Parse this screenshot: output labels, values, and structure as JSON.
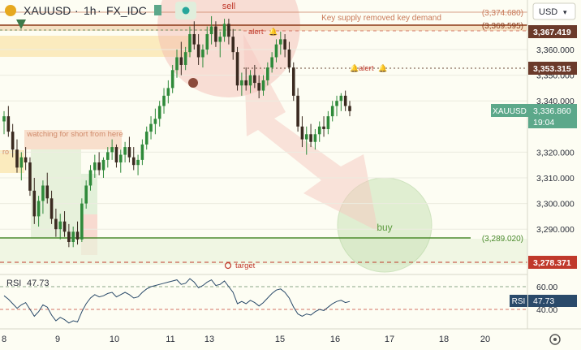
{
  "header": {
    "symbol": "XAUUSD",
    "interval": "1h",
    "exchange": "FX_IDC",
    "separator": "·",
    "currency": "USD"
  },
  "chart_data": {
    "type": "candlestick",
    "price_axis": {
      "ticks": [
        3360,
        3350,
        3340,
        3320,
        3310,
        3300,
        3290
      ],
      "tick_labels": [
        "3,360.000",
        "3,350.000",
        "3,340.000",
        "3,320.000",
        "3,310.000",
        "3,300.000",
        "3,290.000"
      ],
      "range": [
        3270,
        3380
      ]
    },
    "time_axis": {
      "labels": [
        "8",
        "9",
        "10",
        "11",
        "13",
        "15",
        "16",
        "17",
        "18",
        "20"
      ]
    },
    "levels": [
      {
        "price": 3374.68,
        "label": "(3,374.680)",
        "color": "#c97a5a"
      },
      {
        "price": 3369.595,
        "label": "(3,369.595)",
        "color": "#8b3a1a"
      },
      {
        "price": 3289.02,
        "label": "(3,289.020)",
        "color": "#4a8a2c"
      },
      {
        "price": 3278.371,
        "label": "3,278.371",
        "color": "#c0392b"
      },
      {
        "price": 3353.315,
        "label": "3,353.315",
        "color": "#6b4a3a"
      }
    ],
    "price_badges": [
      {
        "price": 3367.419,
        "label": "3,367.419",
        "color": "#6b3a2a"
      },
      {
        "price": 3353.315,
        "label": "3,353.315",
        "color": "#6b3a2a"
      },
      {
        "price": 3336.86,
        "label": "3,336.860",
        "color": "#5ca88a"
      },
      {
        "price": 3278.371,
        "label": "3,278.371",
        "color": "#c0392b"
      }
    ],
    "last_price": {
      "symbol": "XAUUSD",
      "price": "3,336.860",
      "countdown": "19:04"
    },
    "annotations": {
      "supply_note": "Key supply removed key demand",
      "watch_note": "watching for short from here",
      "sell": "sell",
      "buy": "buy",
      "alert": "alert",
      "target": "target",
      "fragment": "ro"
    },
    "candles": [
      [
        3332,
        3336,
        3327,
        3334
      ],
      [
        3334,
        3338,
        3326,
        3328
      ],
      [
        3328,
        3331,
        3318,
        3321
      ],
      [
        3321,
        3325,
        3312,
        3314
      ],
      [
        3314,
        3320,
        3309,
        3318
      ],
      [
        3318,
        3322,
        3313,
        3316
      ],
      [
        3316,
        3318,
        3303,
        3305
      ],
      [
        3305,
        3310,
        3292,
        3295
      ],
      [
        3295,
        3303,
        3291,
        3301
      ],
      [
        3301,
        3309,
        3296,
        3307
      ],
      [
        3307,
        3312,
        3300,
        3302
      ],
      [
        3302,
        3305,
        3292,
        3294
      ],
      [
        3294,
        3298,
        3287,
        3290
      ],
      [
        3290,
        3296,
        3286,
        3293
      ],
      [
        3293,
        3297,
        3287,
        3289
      ],
      [
        3289,
        3292,
        3283,
        3285
      ],
      [
        3285,
        3291,
        3283,
        3289
      ],
      [
        3289,
        3293,
        3284,
        3286
      ],
      [
        3286,
        3302,
        3285,
        3300
      ],
      [
        3300,
        3309,
        3298,
        3307
      ],
      [
        3307,
        3315,
        3305,
        3313
      ],
      [
        3313,
        3319,
        3310,
        3316
      ],
      [
        3316,
        3320,
        3311,
        3313
      ],
      [
        3313,
        3318,
        3310,
        3317
      ],
      [
        3317,
        3322,
        3314,
        3320
      ],
      [
        3320,
        3325,
        3317,
        3322
      ],
      [
        3322,
        3323,
        3314,
        3316
      ],
      [
        3316,
        3321,
        3312,
        3319
      ],
      [
        3319,
        3324,
        3316,
        3322
      ],
      [
        3322,
        3326,
        3316,
        3318
      ],
      [
        3318,
        3322,
        3313,
        3315
      ],
      [
        3315,
        3319,
        3311,
        3317
      ],
      [
        3317,
        3325,
        3315,
        3323
      ],
      [
        3323,
        3330,
        3321,
        3328
      ],
      [
        3328,
        3334,
        3325,
        3331
      ],
      [
        3331,
        3337,
        3327,
        3333
      ],
      [
        3333,
        3340,
        3330,
        3338
      ],
      [
        3338,
        3345,
        3335,
        3342
      ],
      [
        3342,
        3348,
        3339,
        3345
      ],
      [
        3345,
        3354,
        3343,
        3352
      ],
      [
        3352,
        3360,
        3349,
        3357
      ],
      [
        3357,
        3363,
        3350,
        3354
      ],
      [
        3354,
        3361,
        3352,
        3359
      ],
      [
        3359,
        3369,
        3357,
        3366
      ],
      [
        3366,
        3371,
        3360,
        3362
      ],
      [
        3362,
        3366,
        3354,
        3357
      ],
      [
        3357,
        3362,
        3353,
        3360
      ],
      [
        3360,
        3369,
        3358,
        3366
      ],
      [
        3366,
        3373,
        3362,
        3369
      ],
      [
        3369,
        3371,
        3361,
        3363
      ],
      [
        3363,
        3367,
        3357,
        3365
      ],
      [
        3365,
        3372,
        3363,
        3370
      ],
      [
        3370,
        3372,
        3362,
        3365
      ],
      [
        3365,
        3368,
        3356,
        3359
      ],
      [
        3359,
        3361,
        3344,
        3346
      ],
      [
        3346,
        3351,
        3342,
        3348
      ],
      [
        3348,
        3353,
        3344,
        3346
      ],
      [
        3346,
        3352,
        3343,
        3350
      ],
      [
        3350,
        3354,
        3345,
        3347
      ],
      [
        3347,
        3350,
        3341,
        3344
      ],
      [
        3344,
        3350,
        3342,
        3348
      ],
      [
        3348,
        3355,
        3346,
        3353
      ],
      [
        3353,
        3359,
        3351,
        3357
      ],
      [
        3357,
        3364,
        3355,
        3362
      ],
      [
        3362,
        3367,
        3358,
        3364
      ],
      [
        3364,
        3366,
        3357,
        3360
      ],
      [
        3360,
        3363,
        3351,
        3353
      ],
      [
        3353,
        3355,
        3340,
        3342
      ],
      [
        3342,
        3345,
        3328,
        3330
      ],
      [
        3330,
        3334,
        3322,
        3325
      ],
      [
        3325,
        3330,
        3319,
        3327
      ],
      [
        3327,
        3331,
        3322,
        3324
      ],
      [
        3324,
        3329,
        3321,
        3327
      ],
      [
        3327,
        3332,
        3324,
        3330
      ],
      [
        3330,
        3334,
        3326,
        3329
      ],
      [
        3329,
        3336,
        3327,
        3334
      ],
      [
        3334,
        3340,
        3332,
        3338
      ],
      [
        3338,
        3342,
        3334,
        3340
      ],
      [
        3340,
        3343,
        3336,
        3342
      ],
      [
        3342,
        3344,
        3336,
        3338
      ],
      [
        3338,
        3340,
        3334,
        3336
      ]
    ],
    "rsi": {
      "label": "RSI",
      "value": "47.73",
      "ticks": [
        "60.00",
        "40.00"
      ],
      "values": [
        52,
        49,
        45,
        41,
        44,
        46,
        40,
        34,
        38,
        44,
        42,
        35,
        30,
        33,
        31,
        28,
        30,
        29,
        38,
        45,
        50,
        53,
        51,
        52,
        54,
        55,
        51,
        53,
        55,
        53,
        50,
        51,
        55,
        58,
        60,
        61,
        62,
        63,
        64,
        65,
        66,
        62,
        63,
        67,
        64,
        59,
        61,
        64,
        66,
        61,
        62,
        65,
        60,
        55,
        45,
        47,
        45,
        48,
        46,
        43,
        46,
        50,
        54,
        57,
        58,
        55,
        50,
        42,
        36,
        34,
        36,
        35,
        38,
        40,
        39,
        42,
        45,
        47,
        48,
        46,
        47
      ]
    }
  }
}
